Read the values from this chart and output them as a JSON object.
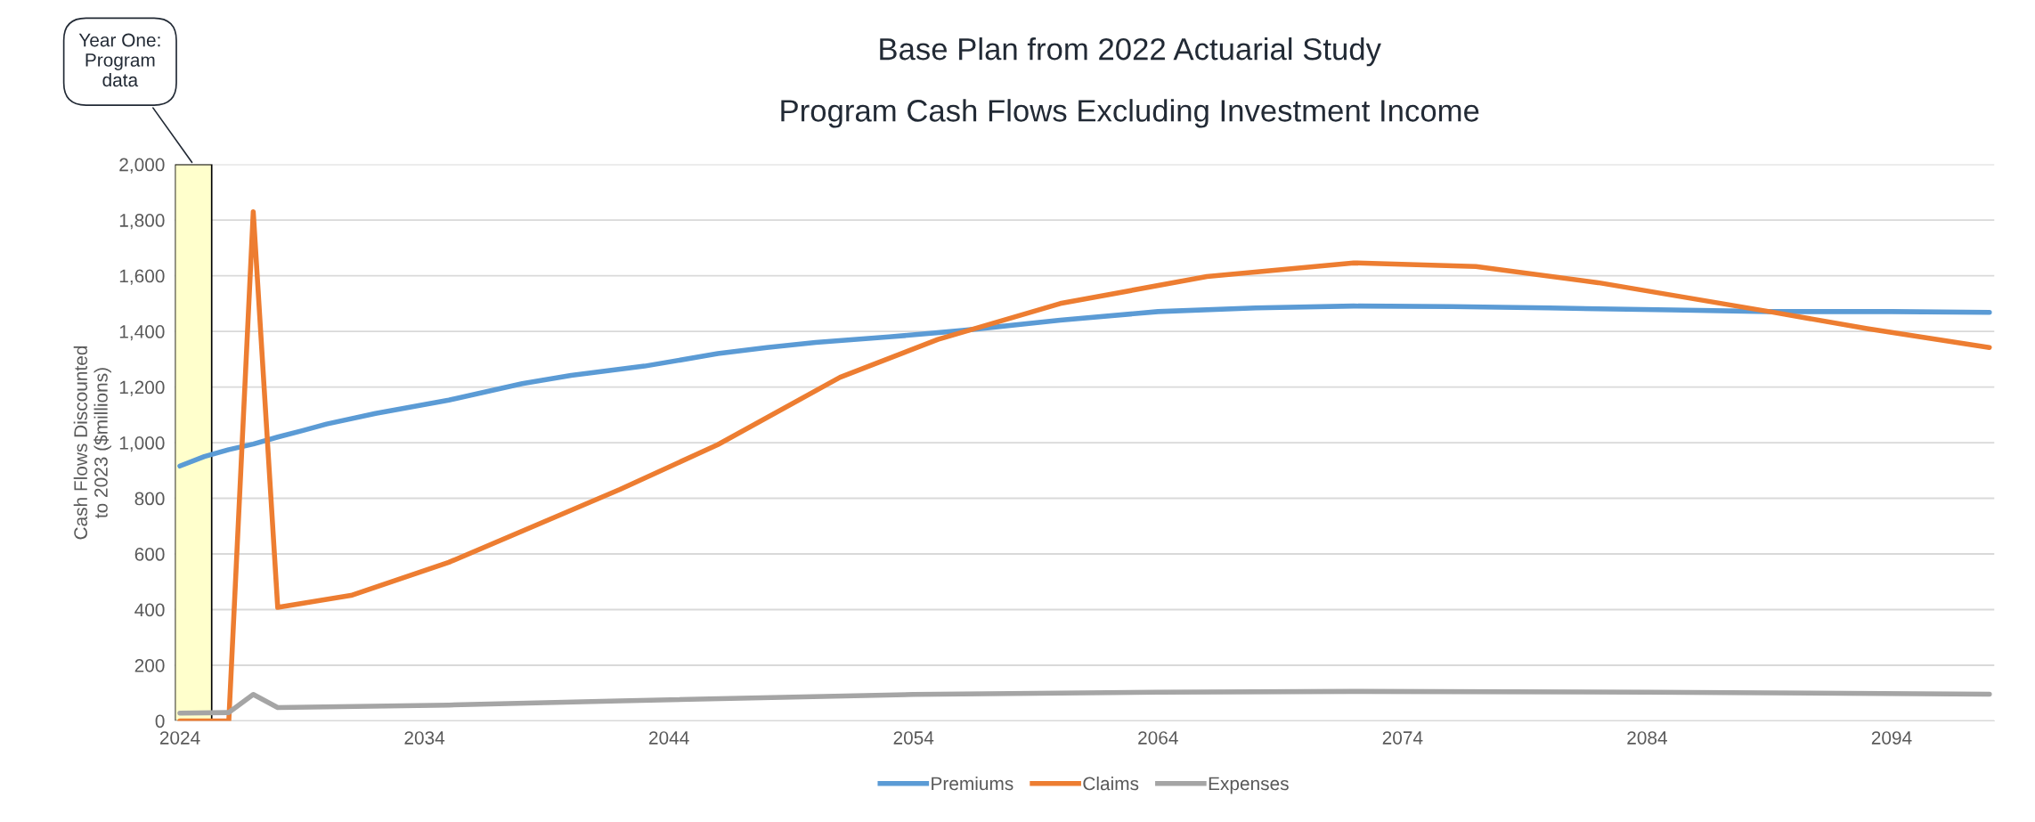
{
  "chart_data": {
    "type": "line",
    "title": "Base Plan from 2022 Actuarial Study",
    "subtitle": "Program Cash Flows Excluding Investment Income",
    "ylabel": "Cash Flows Discounted\nto 2023 ($millions)",
    "xlim": [
      2023.8,
      2098.2
    ],
    "xticks": [
      2024,
      2034,
      2044,
      2054,
      2064,
      2074,
      2084,
      2094
    ],
    "ylim": [
      0,
      2000
    ],
    "yticks": [
      0,
      200,
      400,
      600,
      800,
      {
        "value": 1000,
        "label": "1,000"
      },
      {
        "value": 1200,
        "label": "1,200"
      },
      {
        "value": 1400,
        "label": "1,400"
      },
      {
        "value": 1600,
        "label": "1,600"
      },
      {
        "value": 1800,
        "label": "1,800"
      },
      {
        "value": 2000,
        "label": "2,000"
      }
    ],
    "grid": "y",
    "legend": "bottom",
    "bands": [
      {
        "axis": "x",
        "from": 2023.8,
        "to": 2025.3,
        "label": "Year One:\nProgram\ndata",
        "color": "#ffffcc"
      }
    ],
    "series": [
      {
        "name": "Premiums",
        "color": "#5b9bd5",
        "x": [
          2024,
          2025,
          2026,
          2027,
          2028,
          2029,
          2030,
          2032,
          2035,
          2038,
          2040,
          2043,
          2046,
          2048,
          2050,
          2053,
          2056,
          2060,
          2064,
          2068,
          2072,
          2076,
          2080,
          2085,
          2089,
          2094,
          2098
        ],
        "values": [
          916,
          950,
          975,
          995,
          1020,
          1043,
          1067,
          1105,
          1153,
          1212,
          1242,
          1275,
          1320,
          1342,
          1360,
          1380,
          1403,
          1440,
          1471,
          1484,
          1491,
          1489,
          1484,
          1477,
          1471,
          1471,
          1468
        ]
      },
      {
        "name": "Claims",
        "color": "#ed7d31",
        "x": [
          2024,
          2025,
          2026,
          2027,
          2028,
          2031,
          2035,
          2042,
          2046,
          2051,
          2055,
          2060,
          2066,
          2072,
          2077,
          2082,
          2089,
          2093,
          2098
        ],
        "values": [
          0,
          0,
          0,
          1830,
          408,
          451,
          570,
          832,
          993,
          1235,
          1371,
          1500,
          1597,
          1646,
          1633,
          1575,
          1471,
          1410,
          1342
        ]
      },
      {
        "name": "Expenses",
        "color": "#a5a5a5",
        "x": [
          2024,
          2026,
          2027,
          2028,
          2035,
          2042,
          2054,
          2064,
          2072,
          2084,
          2098
        ],
        "values": [
          28,
          30,
          95,
          48,
          57,
          72,
          95,
          103,
          106,
          103,
          96
        ]
      }
    ]
  }
}
